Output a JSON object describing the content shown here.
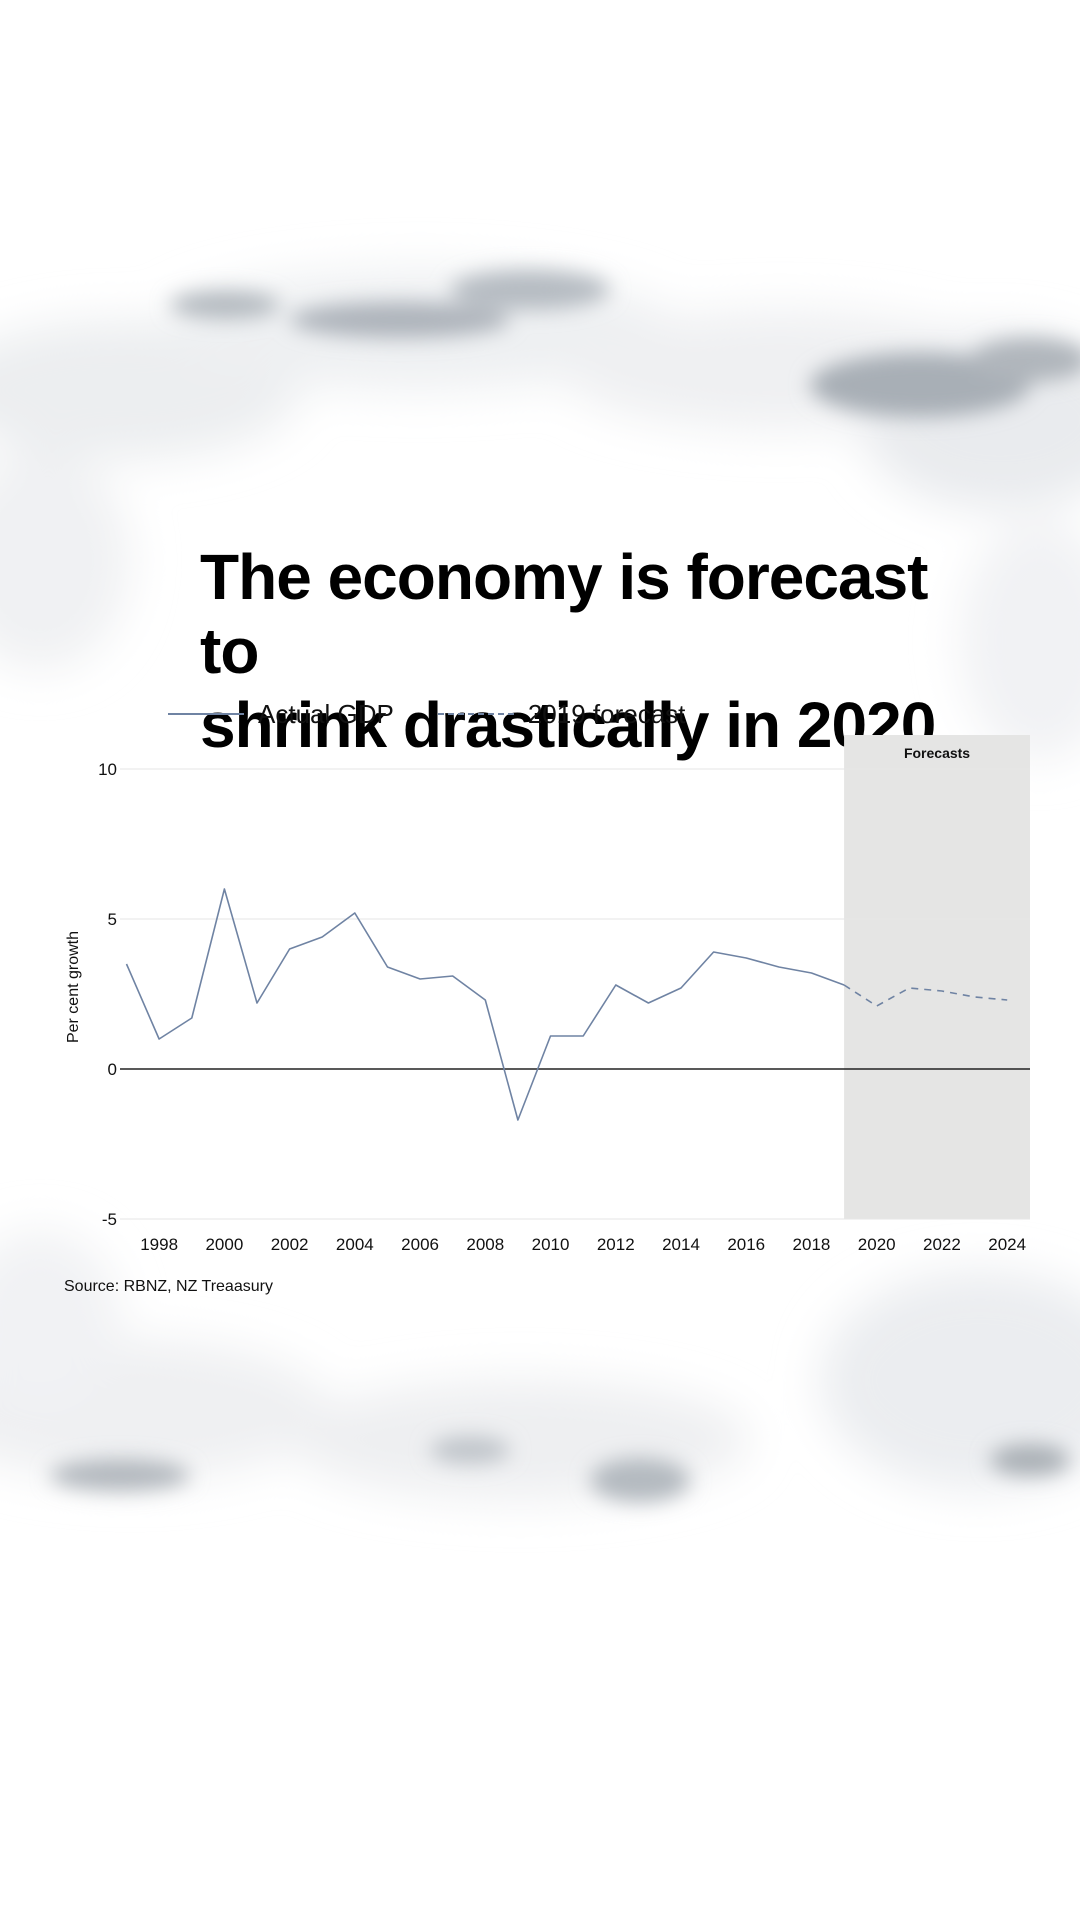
{
  "title_lines": [
    "The economy is forecast to",
    "shrink drastically in 2020"
  ],
  "legend": [
    {
      "label": "Actual GDP",
      "style": "solid"
    },
    {
      "label": "2019 forecast",
      "style": "dashed"
    }
  ],
  "source": "Source: RBNZ, NZ Treaasury",
  "colors": {
    "line": "#6f83a3",
    "grid": "#e6e6e6",
    "zero_line": "#222222",
    "forecast_band": "#e5e5e4",
    "cloud": "#aab1b8"
  },
  "chart_data": {
    "type": "line",
    "ylabel": "Per cent growth",
    "xlabel": "",
    "ylim": [
      -5,
      10
    ],
    "xlim": [
      1996.8,
      2024.7
    ],
    "yticks": [
      10,
      5,
      0,
      -5
    ],
    "xticks": [
      1998,
      2000,
      2002,
      2004,
      2006,
      2008,
      2010,
      2012,
      2014,
      2016,
      2018,
      2020,
      2022,
      2024
    ],
    "grid": true,
    "forecast_band": {
      "from": 2019.0,
      "to": 2024.7,
      "label": "Forecasts"
    },
    "series": [
      {
        "name": "Actual GDP",
        "style": "solid",
        "x": [
          1997,
          1998,
          1999,
          2000,
          2001,
          2002,
          2003,
          2004,
          2005,
          2006,
          2007,
          2008,
          2009,
          2010,
          2011,
          2012,
          2013,
          2014,
          2015,
          2016,
          2017,
          2018,
          2019
        ],
        "y": [
          3.5,
          1.0,
          1.7,
          6.0,
          2.2,
          4.0,
          4.4,
          5.2,
          3.4,
          3.0,
          3.1,
          2.3,
          -1.7,
          1.1,
          1.1,
          2.8,
          2.2,
          2.7,
          3.9,
          3.7,
          3.4,
          3.2,
          2.8
        ]
      },
      {
        "name": "2019 forecast",
        "style": "dashed",
        "x": [
          2019,
          2020,
          2021,
          2022,
          2023,
          2024
        ],
        "y": [
          2.8,
          2.1,
          2.7,
          2.6,
          2.4,
          2.3
        ]
      }
    ]
  }
}
